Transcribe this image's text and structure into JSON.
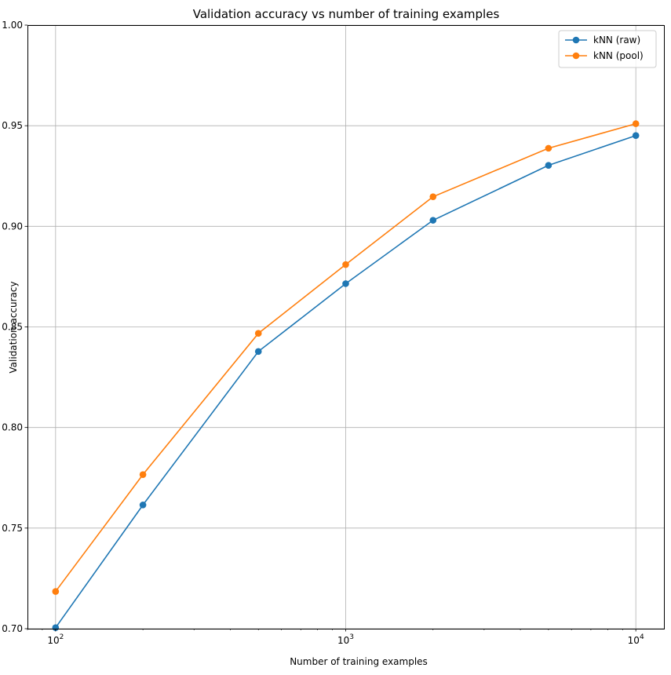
{
  "chart_data": {
    "type": "line",
    "title": "Validation accuracy vs number of training examples",
    "xlabel": "Number of training examples",
    "ylabel": "Validation accuracy",
    "xscale": "log",
    "xlim": [
      80,
      12500
    ],
    "ylim": [
      0.7,
      1.0
    ],
    "x_ticks": [
      {
        "value": 100,
        "base": "10",
        "exp": "2"
      },
      {
        "value": 1000,
        "base": "10",
        "exp": "3"
      },
      {
        "value": 10000,
        "base": "10",
        "exp": "4"
      }
    ],
    "y_ticks": [
      {
        "value": 0.7,
        "label": "0.70"
      },
      {
        "value": 0.75,
        "label": "0.75"
      },
      {
        "value": 0.8,
        "label": "0.80"
      },
      {
        "value": 0.85,
        "label": "0.85"
      },
      {
        "value": 0.9,
        "label": "0.90"
      },
      {
        "value": 0.95,
        "label": "0.95"
      },
      {
        "value": 1.0,
        "label": "1.00"
      }
    ],
    "grid": true,
    "legend_position": "top-right",
    "x": [
      100,
      200,
      500,
      1000,
      2000,
      5000,
      10000
    ],
    "series": [
      {
        "name": "kNN (raw)",
        "color": "#1f77b4",
        "marker": "circle",
        "values": [
          0.7005,
          0.7615,
          0.8378,
          0.8715,
          0.903,
          0.9303,
          0.9451
        ]
      },
      {
        "name": "kNN (pool)",
        "color": "#ff7f0e",
        "marker": "circle",
        "values": [
          0.7185,
          0.7766,
          0.8468,
          0.881,
          0.9147,
          0.9388,
          0.951
        ]
      }
    ]
  }
}
